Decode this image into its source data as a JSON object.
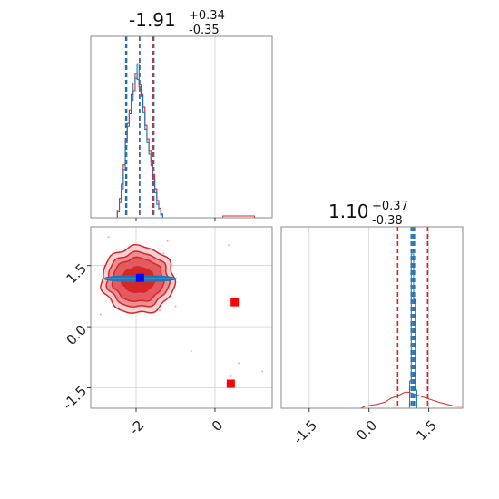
{
  "chart_data": [
    {
      "type": "corner",
      "parameters": [
        {
          "title_value": "-1.91",
          "title_plus": "+0.34",
          "title_minus": "-0.35",
          "axis_range": [
            -3.15,
            1.45
          ],
          "ticks": [
            -2,
            0
          ],
          "tick_labels": [
            "-2",
            "0"
          ]
        },
        {
          "title_value": "1.10",
          "title_plus": "+0.37",
          "title_minus": "-0.38",
          "axis_range": [
            -2.2,
            2.35
          ],
          "ticks": [
            -1.5,
            0.0,
            1.5
          ],
          "tick_labels": [
            "-1.5",
            "0.0",
            "1.5"
          ]
        }
      ],
      "marginal_1": {
        "x_range": [
          -3.15,
          1.45
        ],
        "bins_x": [
          -2.45,
          -2.4,
          -2.35,
          -2.3,
          -2.25,
          -2.2,
          -2.15,
          -2.1,
          -2.05,
          -2.0,
          -1.95,
          -1.9,
          -1.85,
          -1.8,
          -1.75,
          -1.7,
          -1.65,
          -1.6,
          -1.55,
          -1.5,
          -1.45,
          -1.4,
          -1.35
        ],
        "series": [
          {
            "name": "red",
            "color": "#d62728",
            "counts": [
              8,
              20,
              35,
              55,
              82,
              98,
              112,
              128,
              132,
              150,
              144,
              136,
              128,
              115,
              96,
              82,
              70,
              58,
              45,
              30,
              18,
              10,
              4
            ]
          },
          {
            "name": "blue",
            "color": "#1f77b4",
            "counts": [
              6,
              16,
              30,
              50,
              78,
              95,
              108,
              122,
              140,
              145,
              160,
              138,
              126,
              110,
              92,
              78,
              66,
              54,
              40,
              26,
              14,
              8,
              3
            ]
          }
        ],
        "quantile_lines": [
          {
            "color": "#d62728",
            "x": [
              -2.26,
              -1.91,
              -1.57
            ]
          },
          {
            "color": "#1f77b4",
            "x": [
              -2.24,
              -1.91,
              -1.55
            ]
          }
        ]
      },
      "marginal_2": {
        "x_range": [
          -2.2,
          2.35
        ],
        "quantile_lines": [
          {
            "color": "#d62728",
            "x": [
              0.72,
              1.1,
              1.47
            ]
          },
          {
            "color": "#1f77b4",
            "x": [
              1.06,
              1.1,
              1.14
            ]
          }
        ]
      },
      "joint": {
        "x_range": [
          -3.15,
          1.45
        ],
        "y_range": [
          -2.0,
          2.45
        ],
        "y_ticks": [
          -1.5,
          0.0,
          1.5
        ],
        "y_tick_labels": [
          "-1.5",
          "0.0",
          "1.5"
        ],
        "red_contours_center": [
          -1.95,
          1.15
        ],
        "blue_contour_center": [
          -1.9,
          1.18
        ],
        "blue_marker": [
          -1.9,
          1.2
        ],
        "red_markers": [
          [
            0.5,
            0.6
          ],
          [
            0.4,
            -1.4
          ]
        ]
      }
    }
  ]
}
